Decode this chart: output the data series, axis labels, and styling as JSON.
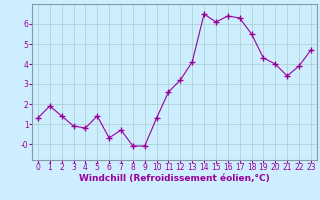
{
  "x": [
    0,
    1,
    2,
    3,
    4,
    5,
    6,
    7,
    8,
    9,
    10,
    11,
    12,
    13,
    14,
    15,
    16,
    17,
    18,
    19,
    20,
    21,
    22,
    23
  ],
  "y": [
    1.3,
    1.9,
    1.4,
    0.9,
    0.8,
    1.4,
    0.3,
    0.7,
    -0.1,
    -0.1,
    1.3,
    2.6,
    3.2,
    4.1,
    6.5,
    6.1,
    6.4,
    6.3,
    5.5,
    4.3,
    4.0,
    3.4,
    3.9,
    4.7
  ],
  "line_color": "#990099",
  "marker": "+",
  "marker_size": 4,
  "marker_lw": 1.0,
  "bg_color": "#cceeff",
  "grid_color": "#aacccc",
  "xlabel": "Windchill (Refroidissement éolien,°C)",
  "xlabel_color": "#990099",
  "xlabel_fontsize": 6.5,
  "tick_color": "#990099",
  "tick_fontsize": 5.5,
  "ylim": [
    -0.8,
    7.0
  ],
  "xlim": [
    -0.5,
    23.5
  ],
  "yticks": [
    0,
    1,
    2,
    3,
    4,
    5,
    6
  ],
  "ytick_labels": [
    "-0",
    "1",
    "2",
    "3",
    "4",
    "5",
    "6"
  ],
  "line_width": 0.8
}
